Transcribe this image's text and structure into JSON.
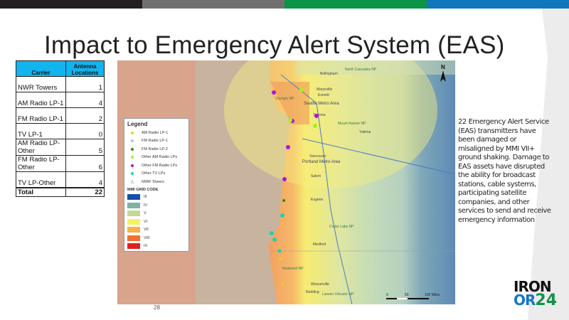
{
  "title": "Impact to Emergency Alert System (EAS)",
  "top_bar_colors": [
    "#231f20",
    "#707070",
    "#0b9446",
    "#1177bb"
  ],
  "table": {
    "headers": [
      "Carrier",
      "Antenna Locations"
    ],
    "rows": [
      {
        "carrier": "NWR Towers",
        "count": "1"
      },
      {
        "carrier": "AM Radio LP-1",
        "count": "4"
      },
      {
        "carrier": "FM Radio LP-1",
        "count": "2"
      },
      {
        "carrier": "TV LP-1",
        "count": "0"
      },
      {
        "carrier": "AM Radio LP-Other",
        "count": "5"
      },
      {
        "carrier": "FM Radio LP-Other",
        "count": "6"
      },
      {
        "carrier": "TV LP-Other",
        "count": "4"
      }
    ],
    "total_label": "Total",
    "total": "22"
  },
  "legend": {
    "title": "Legend",
    "items": [
      {
        "label": "AM Radio LP-1",
        "color": "#e8d21c"
      },
      {
        "label": "FM Radio LP-1",
        "color": "#a9c8d8"
      },
      {
        "label": "FM Radio LP-2",
        "color": "#2e8b1a"
      },
      {
        "label": "Other AM Radio LPs",
        "color": "#a8f01c"
      },
      {
        "label": "Other FM Radio LPs",
        "color": "#b40ee0"
      },
      {
        "label": "Other TV LPs",
        "color": "#18d6a8"
      },
      {
        "label": "NWR Towers",
        "icon": "tower-icon"
      }
    ],
    "mmi_title": "MMI GRID CODE",
    "mmi": [
      {
        "label": "III",
        "color": "#1450a8"
      },
      {
        "label": "IV",
        "color": "#7fb2a4"
      },
      {
        "label": "V",
        "color": "#c4d890"
      },
      {
        "label": "VI",
        "color": "#f6f260"
      },
      {
        "label": "VII",
        "color": "#f8b048"
      },
      {
        "label": "VIII",
        "color": "#f07030"
      },
      {
        "label": "IX",
        "color": "#e02020"
      }
    ]
  },
  "map": {
    "places": [
      "Bellingham",
      "North Cascades NP",
      "Marysville",
      "Everett",
      "Olympic NP",
      "Seattle Metro Area",
      "Tacoma",
      "Mount Rainier NP",
      "Yakima",
      "Vancouver",
      "Portland Metro Area",
      "Salem",
      "Eugene",
      "Crater Lake NP",
      "Medford",
      "Redwood NP",
      "Weaverville",
      "Redding",
      "Lassen Volcanic NP"
    ],
    "north": "N",
    "scale": [
      "0",
      "50",
      "100 Miles"
    ]
  },
  "description": "22 Emergency Alert Service (EAS) transmitters have been damaged or misaligned by MMI VII+ ground shaking. Damage to EAS assets have disrupted the ability for broadcast stations, cable systems, participating satellite companies, and other services to send and receive emergency information",
  "page_number": "28",
  "logo": [
    "IRON",
    "OR",
    "24"
  ]
}
